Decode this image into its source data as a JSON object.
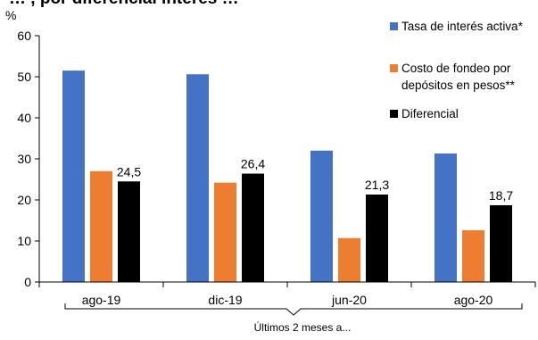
{
  "chart_data": {
    "type": "bar",
    "title": "… , por diferencial interés …",
    "ylabel": "%",
    "ylim": [
      0,
      60
    ],
    "yticks": [
      0,
      10,
      20,
      30,
      40,
      50,
      60
    ],
    "categories": [
      "ago-19",
      "dic-19",
      "jun-20",
      "ago-20"
    ],
    "group_caption": "Últimos 2 meses a...",
    "series": [
      {
        "name": "Tasa de interés activa*",
        "color": "#4472C4",
        "values": [
          51.5,
          50.6,
          32.0,
          31.3
        ],
        "labels": [
          "",
          "",
          "",
          ""
        ]
      },
      {
        "name": "Costo de fondeo por depósitos en pesos**",
        "legend_lines": [
          "Costo de fondeo por",
          "depósitos en pesos**"
        ],
        "color": "#ED7D31",
        "values": [
          27.0,
          24.2,
          10.7,
          12.6
        ],
        "labels": [
          "",
          "",
          "",
          ""
        ]
      },
      {
        "name": "Diferencial",
        "color": "#000000",
        "values": [
          24.5,
          26.4,
          21.3,
          18.7
        ],
        "labels": [
          "24,5",
          "26,4",
          "21,3",
          "18,7"
        ]
      }
    ],
    "grid": false,
    "legend_position": "right"
  }
}
